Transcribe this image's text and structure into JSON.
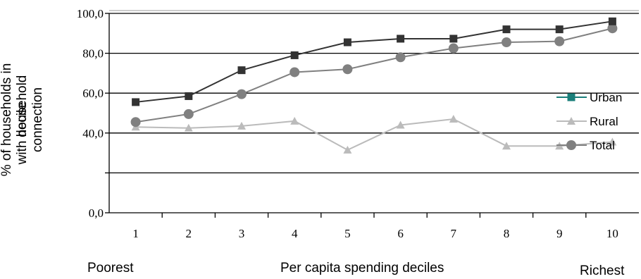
{
  "chart_data": {
    "type": "line",
    "title": "",
    "xlabel": "Per capita spending deciles",
    "ylabel_line1": "% of households in decile",
    "ylabel_line2": "with household connection",
    "categories": [
      "1",
      "2",
      "3",
      "4",
      "5",
      "6",
      "7",
      "8",
      "9",
      "10"
    ],
    "ylim": [
      0,
      100
    ],
    "yticks": [
      "0,0",
      "",
      "40,0",
      "60,0",
      "80,0",
      "100,0"
    ],
    "ytick_values": [
      0,
      20,
      40,
      60,
      80,
      100
    ],
    "grid": true,
    "legend_position": "right",
    "series": [
      {
        "name": "Urban",
        "marker": "square",
        "color": "#333333",
        "legend_color": "#1a7f7a",
        "values": [
          55.5,
          58.5,
          71.5,
          79.0,
          85.5,
          87.3,
          87.3,
          92.0,
          92.0,
          96.0
        ]
      },
      {
        "name": "Rural",
        "marker": "triangle",
        "color": "#bbbbbb",
        "values": [
          43.0,
          42.5,
          43.5,
          46.0,
          31.5,
          44.0,
          47.0,
          33.5,
          33.5,
          35.5
        ]
      },
      {
        "name": "Total",
        "marker": "circle",
        "color": "#808080",
        "values": [
          45.5,
          49.5,
          59.5,
          70.5,
          72.0,
          78.0,
          82.5,
          85.5,
          86.0,
          92.5
        ]
      }
    ]
  },
  "bottom": {
    "left": "Poorest",
    "right": "Richest"
  }
}
